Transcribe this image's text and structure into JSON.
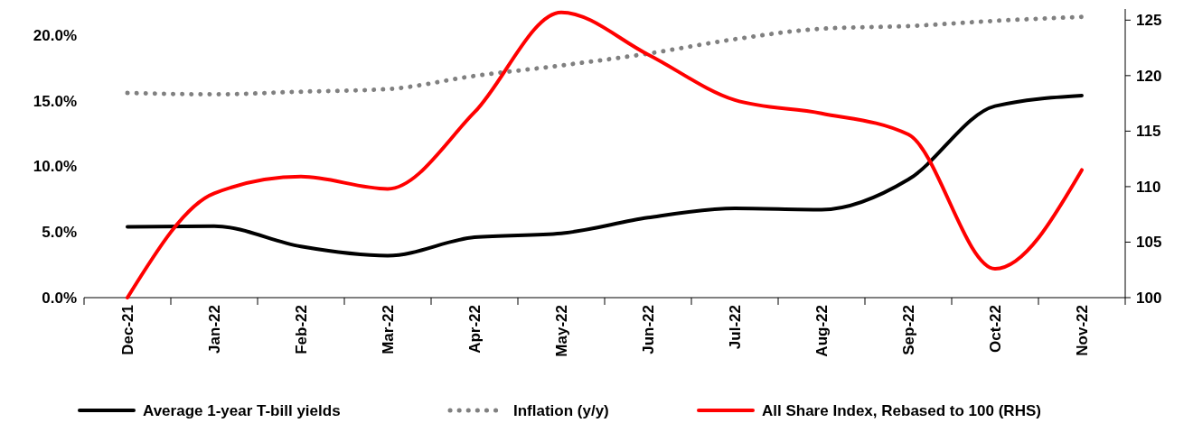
{
  "chart_data": {
    "type": "line",
    "categories": [
      "Dec-21",
      "Jan-22",
      "Feb-22",
      "Mar-22",
      "Apr-22",
      "May-22",
      "Jun-22",
      "Jul-22",
      "Aug-22",
      "Sep-22",
      "Oct-22",
      "Nov-22"
    ],
    "series": [
      {
        "name": "Average 1-year T-bill yields",
        "color": "#000000",
        "line_style": "solid",
        "values": [
          5.4,
          5.45,
          3.9,
          3.2,
          4.6,
          4.9,
          6.1,
          6.8,
          6.7,
          9.0,
          14.6,
          15.4
        ]
      },
      {
        "name": "Inflation (y/y)",
        "color": "#808080",
        "line_style": "dotted",
        "values": [
          15.6,
          15.5,
          15.7,
          15.9,
          16.9,
          17.7,
          18.6,
          19.7,
          20.5,
          20.7,
          21.1,
          21.4
        ]
      },
      {
        "name": "All Share Index, Rebased to 100 (RHS)",
        "color": "#ff0000",
        "line_style": "solid",
        "axis": "y2",
        "values": [
          100,
          109.4,
          110.9,
          109.8,
          116.7,
          125.7,
          121.9,
          117.8,
          116.6,
          114.7,
          102.6,
          111.5
        ]
      }
    ],
    "ylim": [
      0,
      22
    ],
    "yticks": [
      {
        "value": 0,
        "label": "0.0%"
      },
      {
        "value": 5,
        "label": "5.0%"
      },
      {
        "value": 10,
        "label": "10.0%"
      },
      {
        "value": 15,
        "label": "15.0%"
      },
      {
        "value": 20,
        "label": "20.0%"
      }
    ],
    "y2lim": [
      100,
      126
    ],
    "y2ticks": [
      100,
      105,
      110,
      115,
      120,
      125
    ],
    "grid": false,
    "legend": "bottom"
  }
}
